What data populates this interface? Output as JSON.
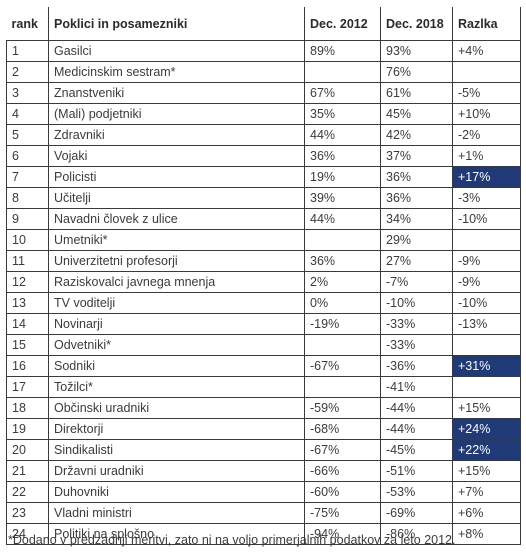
{
  "headers": {
    "rank": "rank",
    "name": "Poklici in posamezniki",
    "dec2012": "Dec. 2012",
    "dec2018": "Dec. 2018",
    "diff": "Razlka"
  },
  "colors": {
    "highlight": "#1f3a77",
    "highlight_text": "#ffffff"
  },
  "rows": [
    {
      "rank": "1",
      "name": "Gasilci",
      "d2012": "89%",
      "d2018": "93%",
      "diff": "+4%",
      "hl": false
    },
    {
      "rank": "2",
      "name": "Medicinskim sestram*",
      "d2012": "",
      "d2018": "76%",
      "diff": "",
      "hl": false
    },
    {
      "rank": "3",
      "name": "Znanstveniki",
      "d2012": "67%",
      "d2018": "61%",
      "diff": "-5%",
      "hl": false
    },
    {
      "rank": "4",
      "name": "(Mali) podjetniki",
      "d2012": "35%",
      "d2018": "45%",
      "diff": "+10%",
      "hl": false
    },
    {
      "rank": "5",
      "name": "Zdravniki",
      "d2012": "44%",
      "d2018": "42%",
      "diff": "-2%",
      "hl": false
    },
    {
      "rank": "6",
      "name": "Vojaki",
      "d2012": "36%",
      "d2018": "37%",
      "diff": "+1%",
      "hl": false
    },
    {
      "rank": "7",
      "name": "Policisti",
      "d2012": "19%",
      "d2018": "36%",
      "diff": "+17%",
      "hl": true
    },
    {
      "rank": "8",
      "name": "Učitelji",
      "d2012": "39%",
      "d2018": "36%",
      "diff": "-3%",
      "hl": false
    },
    {
      "rank": "9",
      "name": "Navadni človek z ulice",
      "d2012": "44%",
      "d2018": "34%",
      "diff": "-10%",
      "hl": false
    },
    {
      "rank": "10",
      "name": "Umetniki*",
      "d2012": "",
      "d2018": "29%",
      "diff": "",
      "hl": false
    },
    {
      "rank": "11",
      "name": "Univerzitetni profesorji",
      "d2012": "36%",
      "d2018": "27%",
      "diff": "-9%",
      "hl": false
    },
    {
      "rank": "12",
      "name": "Raziskovalci javnega mnenja",
      "d2012": "2%",
      "d2018": "-7%",
      "diff": "-9%",
      "hl": false
    },
    {
      "rank": "13",
      "name": "TV voditelji",
      "d2012": "0%",
      "d2018": "-10%",
      "diff": "-10%",
      "hl": false
    },
    {
      "rank": "14",
      "name": "Novinarji",
      "d2012": "-19%",
      "d2018": "-33%",
      "diff": "-13%",
      "hl": false
    },
    {
      "rank": "15",
      "name": "Odvetniki*",
      "d2012": "",
      "d2018": "-33%",
      "diff": "",
      "hl": false
    },
    {
      "rank": "16",
      "name": "Sodniki",
      "d2012": "-67%",
      "d2018": "-36%",
      "diff": "+31%",
      "hl": true
    },
    {
      "rank": "17",
      "name": "Tožilci*",
      "d2012": "",
      "d2018": "-41%",
      "diff": "",
      "hl": false
    },
    {
      "rank": "18",
      "name": "Občinski uradniki",
      "d2012": "-59%",
      "d2018": "-44%",
      "diff": "+15%",
      "hl": false
    },
    {
      "rank": "19",
      "name": "Direktorji",
      "d2012": "-68%",
      "d2018": "-44%",
      "diff": "+24%",
      "hl": true
    },
    {
      "rank": "20",
      "name": "Sindikalisti",
      "d2012": "-67%",
      "d2018": "-45%",
      "diff": "+22%",
      "hl": true
    },
    {
      "rank": "21",
      "name": "Državni uradniki",
      "d2012": "-66%",
      "d2018": "-51%",
      "diff": "+15%",
      "hl": false
    },
    {
      "rank": "22",
      "name": "Duhovniki",
      "d2012": "-60%",
      "d2018": "-53%",
      "diff": "+7%",
      "hl": false
    },
    {
      "rank": "23",
      "name": "Vladni ministri",
      "d2012": "-75%",
      "d2018": "-69%",
      "diff": "+6%",
      "hl": false
    },
    {
      "rank": "24",
      "name": "Politiki na splošno",
      "d2012": "-94%",
      "d2018": "-86%",
      "diff": "+8%",
      "hl": false
    }
  ],
  "footnote": "*Dodano v predzadnji meritvi, zato ni na voljo primerjalnih podatkov za leto 2012."
}
